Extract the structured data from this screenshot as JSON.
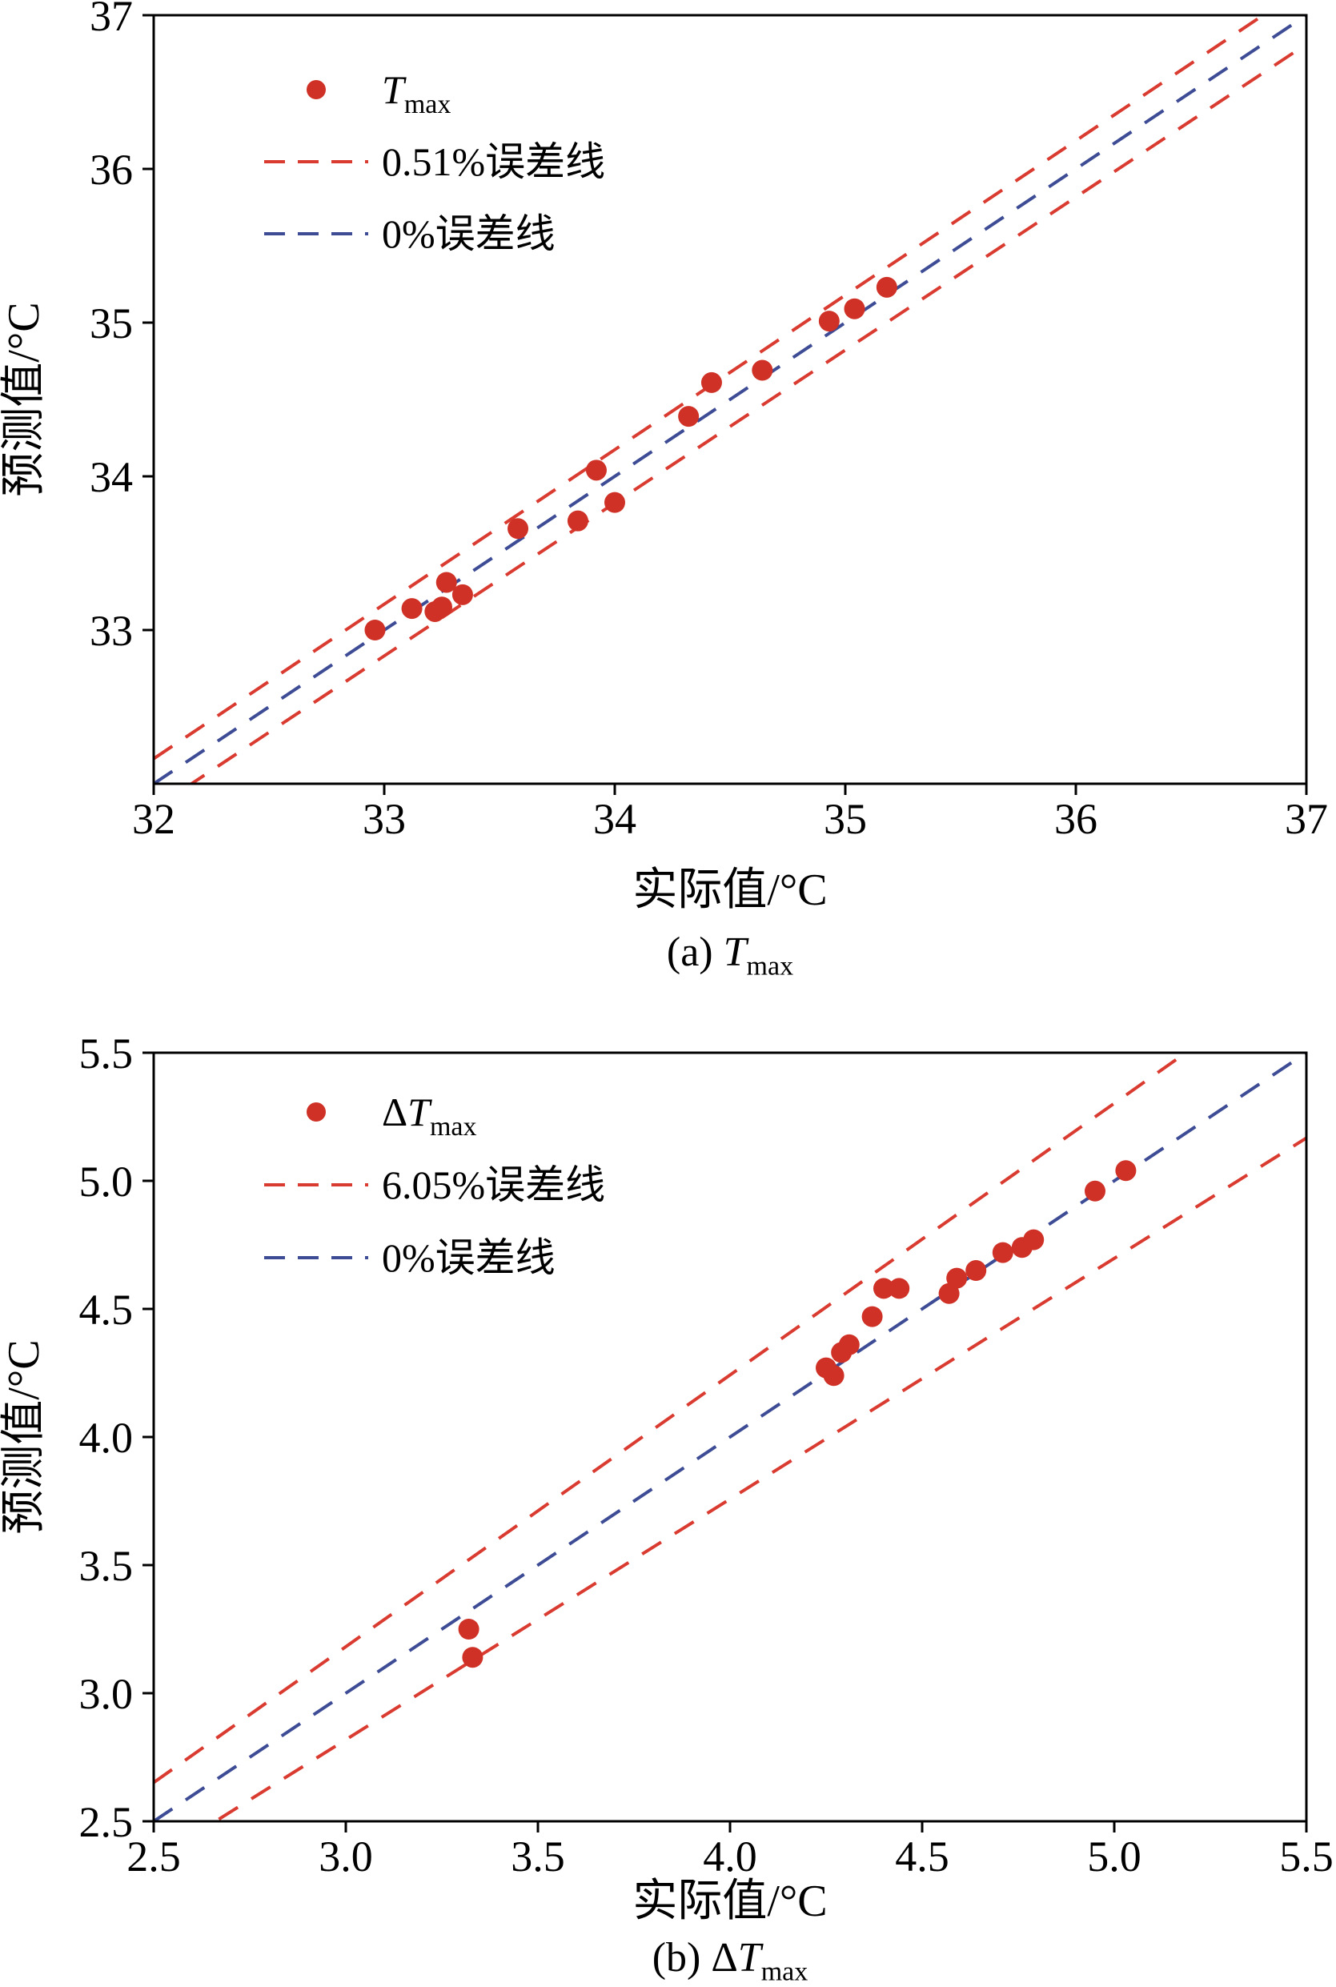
{
  "figure": {
    "background": "#ffffff",
    "axis_color": "#000000",
    "point_color": "#cf3126",
    "error_line_color": "#da3b30",
    "zero_line_color": "#3d4c95"
  },
  "chart_data": [
    {
      "type": "scatter",
      "title": "",
      "xlabel": "实际值/°C",
      "ylabel": "预测值/°C",
      "caption": {
        "pre": "(a) ",
        "italic": "T",
        "sub": "max"
      },
      "xlim": [
        32,
        37
      ],
      "ylim": [
        32,
        37
      ],
      "xticks": [
        32,
        33,
        34,
        35,
        36,
        37
      ],
      "xtick_labels": [
        "32",
        "33",
        "34",
        "35",
        "36",
        "37"
      ],
      "yticks": [
        33,
        34,
        35,
        36,
        37
      ],
      "ytick_labels": [
        "33",
        "34",
        "35",
        "36",
        "37"
      ],
      "grid": false,
      "legend_position": "upper-left",
      "error_band_percent": 0.51,
      "legend": [
        {
          "marker": "point",
          "pre": "",
          "italic": "T",
          "sub": "max",
          "text": ""
        },
        {
          "marker": "dash-red",
          "text": "0.51%误差线"
        },
        {
          "marker": "dash-blue",
          "text": "0%误差线"
        }
      ],
      "points": [
        [
          32.96,
          33.0
        ],
        [
          33.12,
          33.14
        ],
        [
          33.22,
          33.12
        ],
        [
          33.25,
          33.15
        ],
        [
          33.27,
          33.31
        ],
        [
          33.34,
          33.23
        ],
        [
          33.58,
          33.66
        ],
        [
          33.84,
          33.71
        ],
        [
          33.92,
          34.04
        ],
        [
          34.0,
          33.83
        ],
        [
          34.32,
          34.39
        ],
        [
          34.42,
          34.61
        ],
        [
          34.64,
          34.69
        ],
        [
          34.93,
          35.01
        ],
        [
          35.04,
          35.09
        ],
        [
          35.18,
          35.23
        ]
      ]
    },
    {
      "type": "scatter",
      "title": "",
      "xlabel": "实际值/°C",
      "ylabel": "预测值/°C",
      "caption": {
        "pre": "(b) Δ",
        "italic": "T",
        "sub": "max"
      },
      "xlim": [
        2.5,
        5.5
      ],
      "ylim": [
        2.5,
        5.5
      ],
      "xticks": [
        2.5,
        3.0,
        3.5,
        4.0,
        4.5,
        5.0,
        5.5
      ],
      "xtick_labels": [
        "2.5",
        "3.0",
        "3.5",
        "4.0",
        "4.5",
        "5.0",
        "5.5"
      ],
      "yticks": [
        2.5,
        3.0,
        3.5,
        4.0,
        4.5,
        5.0,
        5.5
      ],
      "ytick_labels": [
        "2.5",
        "3.0",
        "3.5",
        "4.0",
        "4.5",
        "5.0",
        "5.5"
      ],
      "grid": false,
      "legend_position": "upper-left",
      "error_band_percent": 6.05,
      "legend": [
        {
          "marker": "point",
          "pre": "Δ",
          "italic": "T",
          "sub": "max",
          "text": ""
        },
        {
          "marker": "dash-red",
          "text": "6.05%误差线"
        },
        {
          "marker": "dash-blue",
          "text": "0%误差线"
        }
      ],
      "points": [
        [
          3.32,
          3.25
        ],
        [
          3.33,
          3.14
        ],
        [
          4.25,
          4.27
        ],
        [
          4.27,
          4.24
        ],
        [
          4.29,
          4.33
        ],
        [
          4.31,
          4.36
        ],
        [
          4.37,
          4.47
        ],
        [
          4.4,
          4.58
        ],
        [
          4.44,
          4.58
        ],
        [
          4.57,
          4.56
        ],
        [
          4.59,
          4.62
        ],
        [
          4.64,
          4.65
        ],
        [
          4.71,
          4.72
        ],
        [
          4.76,
          4.74
        ],
        [
          4.79,
          4.77
        ],
        [
          4.95,
          4.96
        ],
        [
          5.03,
          5.04
        ]
      ]
    }
  ]
}
